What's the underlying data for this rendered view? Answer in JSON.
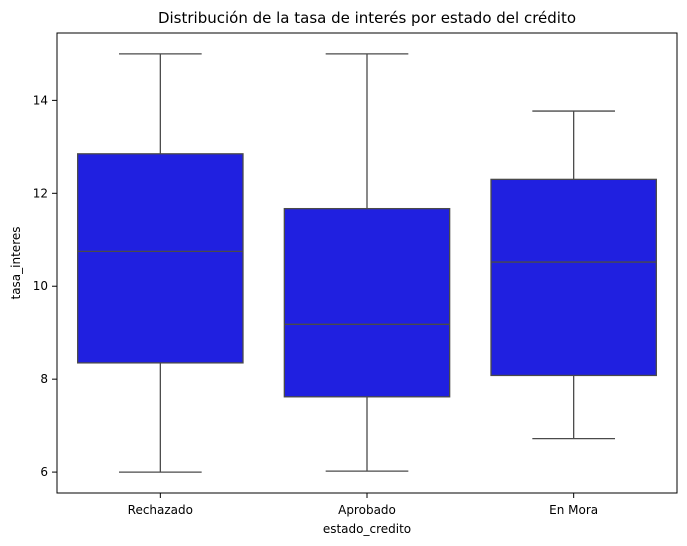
{
  "chart_data": {
    "type": "box",
    "title": "Distribución de la tasa de interés por estado del crédito",
    "xlabel": "estado_credito",
    "ylabel": "tasa_interes",
    "categories": [
      "Rechazado",
      "Aprobado",
      "En Mora"
    ],
    "boxes": [
      {
        "category": "Rechazado",
        "whisker_low": 6.0,
        "q1": 8.35,
        "median": 10.75,
        "q3": 12.85,
        "whisker_high": 15.0
      },
      {
        "category": "Aprobado",
        "whisker_low": 6.02,
        "q1": 7.62,
        "median": 9.18,
        "q3": 11.67,
        "whisker_high": 15.0
      },
      {
        "category": "En Mora",
        "whisker_low": 6.72,
        "q1": 8.08,
        "median": 10.52,
        "q3": 12.3,
        "whisker_high": 13.77
      }
    ],
    "y_ticks": [
      6,
      8,
      10,
      12,
      14
    ],
    "ylim": [
      5.55,
      15.45
    ],
    "grid": false,
    "colors": {
      "box_fill": "#2020e0",
      "lines": "#4a4a4a",
      "axes": "#000000"
    }
  }
}
